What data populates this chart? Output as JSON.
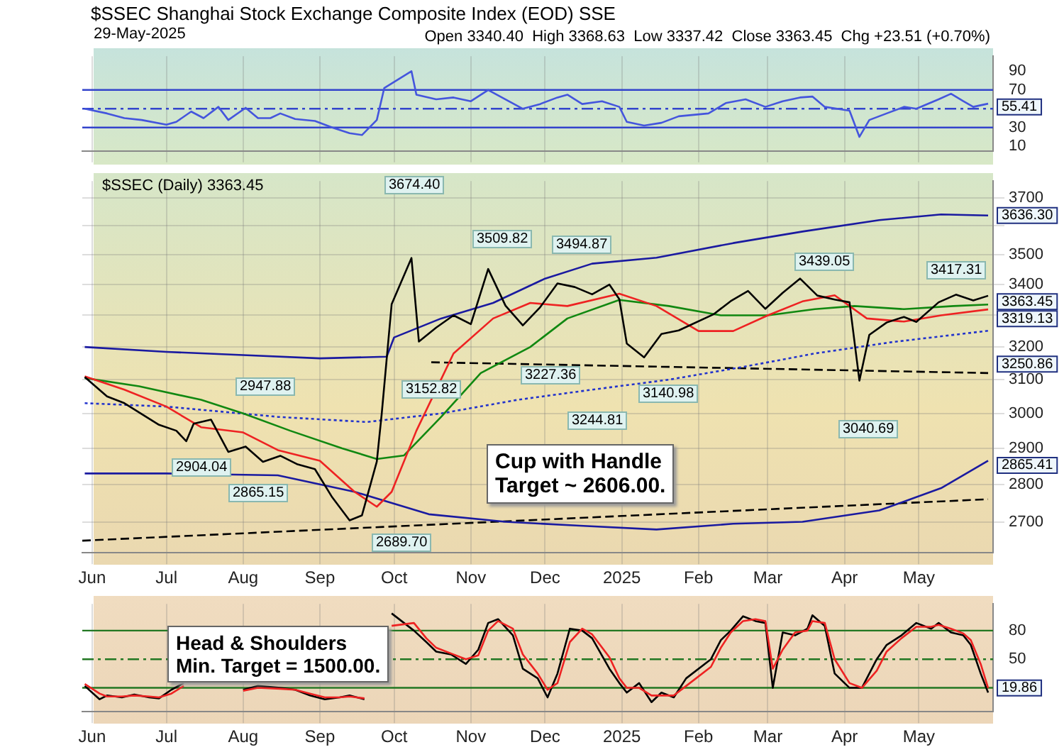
{
  "chart_data": [
    {
      "type": "line",
      "title": "$SSEC Shanghai Stock Exchange Composite Index (EOD) SSE",
      "subtitle": "29-May-2025",
      "annotations": [
        "Open 3340.40  High 3368.63  Low 3337.42  Close 3363.45  Chg +23.51 (+0.70%)",
        {
          "text": "55.41",
          "x": "2025-05-29",
          "y": 55.41
        }
      ],
      "xlim": [
        "2024-05-28",
        "2025-05-31"
      ],
      "xticks": [
        {
          "value": "2024-06-01",
          "label": null
        },
        {
          "value": "2024-07-01",
          "label": null
        },
        {
          "value": "2024-08-01",
          "label": null
        },
        {
          "value": "2024-09-01",
          "label": null
        },
        {
          "value": "2024-10-01",
          "label": null
        },
        {
          "value": "2024-11-01",
          "label": null
        },
        {
          "value": "2024-12-01",
          "label": null
        },
        {
          "value": "2025-01-01",
          "label": null
        },
        {
          "value": "2025-02-01",
          "label": null
        },
        {
          "value": "2025-03-01",
          "label": null
        },
        {
          "value": "2025-04-01",
          "label": null
        },
        {
          "value": "2025-05-01",
          "label": null
        }
      ],
      "ylim": [
        5,
        106
      ],
      "yticks": [
        10,
        30,
        {
          "value": 50,
          "label": null
        },
        70,
        90
      ],
      "tick_labels": "y",
      "grid": "x",
      "ref_lines": [
        {
          "axis": "y",
          "value": 70,
          "color": "#3344cc"
        },
        {
          "axis": "y",
          "value": 50,
          "color": "#3344cc",
          "line_style": "dashed"
        },
        {
          "axis": "y",
          "value": 30,
          "color": "#3344cc"
        }
      ],
      "series": [
        {
          "color": "#4455dd",
          "x": [
            "2024-05-29",
            "2024-06-07",
            "2024-06-14",
            "2024-06-21",
            "2024-07-01",
            "2024-07-05",
            "2024-07-11",
            "2024-07-16",
            "2024-07-22",
            "2024-07-26",
            "2024-08-02",
            "2024-08-07",
            "2024-08-12",
            "2024-08-16",
            "2024-08-22",
            "2024-08-30",
            "2024-09-06",
            "2024-09-13",
            "2024-09-18",
            "2024-09-24",
            "2024-09-27",
            "2024-10-08",
            "2024-10-10",
            "2024-10-18",
            "2024-10-25",
            "2024-11-01",
            "2024-11-08",
            "2024-11-15",
            "2024-11-22",
            "2024-11-29",
            "2024-12-06",
            "2024-12-10",
            "2024-12-16",
            "2024-12-24",
            "2024-12-31",
            "2025-01-03",
            "2025-01-10",
            "2025-01-17",
            "2025-01-24",
            "2025-02-05",
            "2025-02-12",
            "2025-02-20",
            "2025-02-28",
            "2025-03-07",
            "2025-03-14",
            "2025-03-19",
            "2025-03-24",
            "2025-04-03",
            "2025-04-07",
            "2025-04-11",
            "2025-04-18",
            "2025-04-25",
            "2025-04-30",
            "2025-05-09",
            "2025-05-14",
            "2025-05-19",
            "2025-05-23",
            "2025-05-29"
          ],
          "values": [
            50,
            45,
            40,
            38,
            33,
            36,
            47,
            40,
            52,
            38,
            51,
            40,
            40,
            45,
            39,
            37,
            30,
            24,
            22,
            38,
            72,
            90,
            65,
            60,
            62,
            58,
            70,
            60,
            50,
            55,
            62,
            65,
            55,
            58,
            52,
            36,
            32,
            35,
            42,
            45,
            56,
            60,
            52,
            58,
            62,
            63,
            52,
            48,
            20,
            38,
            45,
            52,
            50,
            60,
            66,
            58,
            52,
            55.41
          ]
        }
      ]
    },
    {
      "type": "line",
      "log": "y",
      "grid": true,
      "annotations": [
        "$SSEC (Daily) 3363.45",
        "Cup with Handle\nTarget ~ 2606.00.",
        "3674.40",
        "3509.82",
        "3494.87",
        "3439.05",
        "3417.31",
        "2947.88",
        "3244.81",
        "3152.82",
        "3227.36",
        "3140.98",
        "3040.69",
        "2904.04",
        "2865.15",
        "2689.70",
        {
          "text": "3636.30",
          "x": "2025-05-29",
          "y": 3636.3
        },
        {
          "text": "3363.45",
          "x": "2025-05-29",
          "y": 3363.45
        },
        {
          "text": "3319.13",
          "x": "2025-05-29",
          "y": 3319.13
        },
        {
          "text": "3250.86",
          "x": "2025-05-29",
          "y": 3250.86
        },
        {
          "text": "2865.41",
          "x": "2025-05-29",
          "y": 2865.41
        }
      ],
      "xlim": [
        "2024-05-28",
        "2025-05-31"
      ],
      "xticks": [
        {
          "value": "2024-06-01",
          "label": "Jun"
        },
        {
          "value": "2024-07-01",
          "label": "Jul"
        },
        {
          "value": "2024-08-01",
          "label": "Aug"
        },
        {
          "value": "2024-09-01",
          "label": "Sep"
        },
        {
          "value": "2024-10-01",
          "label": "Oct"
        },
        {
          "value": "2024-11-01",
          "label": "Nov"
        },
        {
          "value": "2024-12-01",
          "label": "Dec"
        },
        {
          "value": "2025-01-01",
          "label": "2025"
        },
        {
          "value": "2025-02-01",
          "label": "Feb"
        },
        {
          "value": "2025-03-01",
          "label": "Mar"
        },
        {
          "value": "2025-04-01",
          "label": "Apr"
        },
        {
          "value": "2025-05-01",
          "label": "May"
        }
      ],
      "ylim": [
        2620,
        3760
      ],
      "yticks": [
        2700,
        2800,
        2900,
        3000,
        3100,
        3200,
        {
          "value": 3300,
          "label": null
        },
        3400,
        3500,
        {
          "value": 3600,
          "label": null
        },
        3700
      ],
      "series": [
        {
          "color": "#000000",
          "x": [
            "2024-05-29",
            "2024-06-07",
            "2024-06-14",
            "2024-06-21",
            "2024-06-28",
            "2024-07-05",
            "2024-07-09",
            "2024-07-12",
            "2024-07-19",
            "2024-07-26",
            "2024-08-02",
            "2024-08-09",
            "2024-08-16",
            "2024-08-23",
            "2024-08-30",
            "2024-09-06",
            "2024-09-13",
            "2024-09-18",
            "2024-09-24",
            "2024-09-26",
            "2024-09-30",
            "2024-10-08",
            "2024-10-11",
            "2024-10-18",
            "2024-10-25",
            "2024-11-01",
            "2024-11-08",
            "2024-11-15",
            "2024-11-22",
            "2024-11-29",
            "2024-12-06",
            "2024-12-13",
            "2024-12-20",
            "2024-12-27",
            "2024-12-31",
            "2025-01-03",
            "2025-01-10",
            "2025-01-17",
            "2025-01-24",
            "2025-02-07",
            "2025-02-14",
            "2025-02-21",
            "2025-02-28",
            "2025-03-07",
            "2025-03-14",
            "2025-03-21",
            "2025-03-28",
            "2025-04-03",
            "2025-04-07",
            "2025-04-11",
            "2025-04-18",
            "2025-04-25",
            "2025-04-30",
            "2025-05-09",
            "2025-05-16",
            "2025-05-23",
            "2025-05-29"
          ],
          "values": [
            3108,
            3050,
            3030,
            2998,
            2967,
            2950,
            2920,
            2970,
            2982,
            2890,
            2905,
            2862,
            2879,
            2855,
            2842,
            2765,
            2704,
            2717,
            2863,
            3000,
            3336,
            3489,
            3217,
            3261,
            3300,
            3272,
            3452,
            3331,
            3268,
            3326,
            3404,
            3392,
            3368,
            3400,
            3352,
            3211,
            3168,
            3241,
            3252,
            3303,
            3346,
            3379,
            3321,
            3373,
            3420,
            3364,
            3351,
            3342,
            3097,
            3238,
            3277,
            3295,
            3279,
            3342,
            3367,
            3348,
            3363.45
          ]
        },
        {
          "color": "#ee2222",
          "x": [
            "2024-05-29",
            "2024-06-14",
            "2024-07-01",
            "2024-07-15",
            "2024-08-01",
            "2024-08-15",
            "2024-09-01",
            "2024-09-15",
            "2024-09-24",
            "2024-09-30",
            "2024-10-10",
            "2024-10-25",
            "2024-11-10",
            "2024-11-25",
            "2024-12-10",
            "2024-12-31",
            "2025-01-15",
            "2025-02-01",
            "2025-02-15",
            "2025-03-01",
            "2025-03-15",
            "2025-03-28",
            "2025-04-10",
            "2025-04-25",
            "2025-05-10",
            "2025-05-29"
          ],
          "values": [
            3110,
            3070,
            3020,
            2960,
            2945,
            2895,
            2865,
            2780,
            2740,
            2780,
            2950,
            3180,
            3290,
            3340,
            3330,
            3370,
            3330,
            3250,
            3250,
            3300,
            3345,
            3365,
            3290,
            3280,
            3300,
            3319.13
          ]
        },
        {
          "color": "#118811",
          "x": [
            "2024-05-29",
            "2024-06-20",
            "2024-07-15",
            "2024-08-01",
            "2024-08-20",
            "2024-09-10",
            "2024-09-24",
            "2024-10-05",
            "2024-10-20",
            "2024-11-05",
            "2024-11-25",
            "2024-12-10",
            "2024-12-31",
            "2025-01-20",
            "2025-02-10",
            "2025-03-01",
            "2025-03-20",
            "2025-04-05",
            "2025-04-25",
            "2025-05-15",
            "2025-05-29"
          ],
          "values": [
            3105,
            3080,
            3040,
            3000,
            2950,
            2900,
            2870,
            2880,
            2990,
            3120,
            3200,
            3290,
            3350,
            3330,
            3300,
            3300,
            3320,
            3330,
            3320,
            3330,
            3335
          ]
        },
        {
          "color": "#1a1aa0",
          "x": [
            "2024-05-29",
            "2024-07-01",
            "2024-08-01",
            "2024-09-01",
            "2024-09-28",
            "2024-10-01",
            "2024-10-20",
            "2024-11-10",
            "2024-12-01",
            "2024-12-20",
            "2025-01-15",
            "2025-02-15",
            "2025-03-15",
            "2025-04-15",
            "2025-05-10",
            "2025-05-29"
          ],
          "values": [
            3200,
            3185,
            3175,
            3165,
            3170,
            3230,
            3290,
            3340,
            3420,
            3470,
            3490,
            3540,
            3580,
            3620,
            3640,
            3636.3
          ]
        },
        {
          "color": "#1a1aa0",
          "x": [
            "2024-05-29",
            "2024-07-01",
            "2024-08-15",
            "2024-09-15",
            "2024-10-15",
            "2024-11-15",
            "2024-12-15",
            "2025-01-15",
            "2025-02-15",
            "2025-03-15",
            "2025-04-15",
            "2025-05-10",
            "2025-05-29"
          ],
          "values": [
            2830,
            2830,
            2825,
            2780,
            2720,
            2700,
            2690,
            2680,
            2695,
            2700,
            2730,
            2790,
            2865.41
          ]
        },
        {
          "color": "#2233cc",
          "line_style": "dotted",
          "x": [
            "2024-05-29",
            "2024-07-01",
            "2024-08-15",
            "2024-09-20",
            "2024-10-20",
            "2024-11-20",
            "2024-12-20",
            "2025-01-20",
            "2025-02-20",
            "2025-03-20",
            "2025-04-20",
            "2025-05-29"
          ],
          "values": [
            3030,
            3020,
            2990,
            2975,
            3000,
            3040,
            3070,
            3100,
            3140,
            3180,
            3215,
            3250.86
          ]
        },
        {
          "color": "#000000",
          "line_style": "dashed",
          "x": [
            "2024-10-16",
            "2025-05-29"
          ],
          "values": [
            3152.82,
            3120
          ]
        },
        {
          "color": "#000000",
          "line_style": "dashed",
          "x": [
            "2024-05-28",
            "2025-05-29"
          ],
          "values": [
            2651,
            2760
          ]
        }
      ]
    },
    {
      "type": "line",
      "annotations": [
        "Head & Shoulders\nMin. Target = 1500.00.",
        {
          "text": "19.86",
          "x": "2025-05-29",
          "y": 19.86
        }
      ],
      "xlim": [
        "2024-05-28",
        "2025-05-31"
      ],
      "xticks": [
        {
          "value": "2024-06-01",
          "label": "Jun"
        },
        {
          "value": "2024-07-01",
          "label": "Jul"
        },
        {
          "value": "2024-08-01",
          "label": "Aug"
        },
        {
          "value": "2024-09-01",
          "label": "Sep"
        },
        {
          "value": "2024-10-01",
          "label": "Oct"
        },
        {
          "value": "2024-11-01",
          "label": "Nov"
        },
        {
          "value": "2024-12-01",
          "label": "Dec"
        },
        {
          "value": "2025-01-01",
          "label": "2025"
        },
        {
          "value": "2025-02-01",
          "label": "Feb"
        },
        {
          "value": "2025-03-01",
          "label": "Mar"
        },
        {
          "value": "2025-04-01",
          "label": "Apr"
        },
        {
          "value": "2025-05-01",
          "label": "May"
        }
      ],
      "ylim": [
        -5,
        108
      ],
      "yticks": [
        {
          "value": 20,
          "label": null
        },
        50,
        80
      ],
      "grid": "x",
      "ref_lines": [
        {
          "axis": "y",
          "value": 80,
          "color": "#227722"
        },
        {
          "axis": "y",
          "value": 50,
          "color": "#227722",
          "line_style": "dashed"
        },
        {
          "axis": "y",
          "value": 20,
          "color": "#227722"
        }
      ],
      "series": [
        {
          "color": "#ee2222",
          "x": [
            "2024-05-29",
            "2024-06-04",
            "2024-06-07",
            "2024-06-13",
            "2024-06-18",
            "2024-06-24",
            "2024-06-28",
            "2024-07-03",
            "2024-07-08",
            "2024-07-12",
            "2024-07-26",
            "2024-08-01",
            "2024-08-07",
            "2024-08-16",
            "2024-08-22",
            "2024-08-28",
            "2024-09-03",
            "2024-09-09",
            "2024-09-13",
            "2024-09-19",
            "2024-09-24",
            "2024-09-30",
            "2024-10-09",
            "2024-10-14",
            "2024-10-18",
            "2024-10-24",
            "2024-10-30",
            "2024-11-04",
            "2024-11-08",
            "2024-11-12",
            "2024-11-18",
            "2024-11-22",
            "2024-11-28",
            "2024-12-02",
            "2024-12-06",
            "2024-12-11",
            "2024-12-16",
            "2024-12-20",
            "2024-12-27",
            "2024-12-31",
            "2025-01-03",
            "2025-01-08",
            "2025-01-13",
            "2025-01-17",
            "2025-01-22",
            "2025-01-27",
            "2025-02-06",
            "2025-02-10",
            "2025-02-14",
            "2025-02-19",
            "2025-02-24",
            "2025-02-28",
            "2025-03-03",
            "2025-03-07",
            "2025-03-12",
            "2025-03-17",
            "2025-03-19",
            "2025-03-24",
            "2025-03-28",
            "2025-04-03",
            "2025-04-08",
            "2025-04-14",
            "2025-04-18",
            "2025-04-24",
            "2025-04-30",
            "2025-05-06",
            "2025-05-09",
            "2025-05-14",
            "2025-05-19",
            "2025-05-22",
            "2025-05-26",
            "2025-05-29"
          ],
          "values": [
            24,
            14,
            11,
            11,
            12,
            11,
            10,
            14,
            22,
            null,
            null,
            17,
            20,
            19,
            18,
            14,
            10,
            10,
            11,
            9,
            null,
            85,
            88,
            72,
            62,
            56,
            50,
            54,
            80,
            90,
            82,
            55,
            35,
            18,
            25,
            68,
            82,
            76,
            52,
            30,
            20,
            20,
            12,
            12,
            12,
            22,
            42,
            62,
            78,
            90,
            92,
            90,
            40,
            60,
            78,
            80,
            90,
            88,
            50,
            25,
            20,
            38,
            58,
            72,
            84,
            84,
            86,
            82,
            77,
            70,
            45,
            19.86
          ]
        },
        {
          "color": "#000000",
          "x": [
            "2024-05-29",
            "2024-06-04",
            "2024-06-07",
            "2024-06-13",
            "2024-06-18",
            "2024-06-24",
            "2024-06-28",
            "2024-07-03",
            "2024-07-08",
            "2024-07-12",
            "2024-07-26",
            "2024-08-01",
            "2024-08-07",
            "2024-08-16",
            "2024-08-22",
            "2024-08-28",
            "2024-09-03",
            "2024-09-09",
            "2024-09-13",
            "2024-09-19",
            "2024-09-24",
            "2024-09-30",
            "2024-10-09",
            "2024-10-14",
            "2024-10-18",
            "2024-10-24",
            "2024-10-30",
            "2024-11-04",
            "2024-11-08",
            "2024-11-12",
            "2024-11-18",
            "2024-11-22",
            "2024-11-28",
            "2024-12-02",
            "2024-12-06",
            "2024-12-11",
            "2024-12-16",
            "2024-12-20",
            "2024-12-27",
            "2024-12-31",
            "2025-01-03",
            "2025-01-08",
            "2025-01-13",
            "2025-01-17",
            "2025-01-22",
            "2025-01-27",
            "2025-02-06",
            "2025-02-10",
            "2025-02-14",
            "2025-02-19",
            "2025-02-24",
            "2025-02-28",
            "2025-03-03",
            "2025-03-07",
            "2025-03-12",
            "2025-03-17",
            "2025-03-19",
            "2025-03-24",
            "2025-03-28",
            "2025-04-03",
            "2025-04-08",
            "2025-04-14",
            "2025-04-18",
            "2025-04-24",
            "2025-04-30",
            "2025-05-06",
            "2025-05-09",
            "2025-05-14",
            "2025-05-19",
            "2025-05-22",
            "2025-05-26",
            "2025-05-29"
          ],
          "values": [
            22,
            8,
            12,
            10,
            13,
            10,
            9,
            18,
            25,
            null,
            null,
            18,
            22,
            20,
            18,
            12,
            8,
            10,
            12,
            8,
            null,
            98,
            80,
            68,
            58,
            55,
            45,
            60,
            88,
            92,
            75,
            40,
            30,
            10,
            35,
            82,
            80,
            72,
            40,
            25,
            15,
            25,
            5,
            15,
            10,
            30,
            50,
            70,
            80,
            95,
            90,
            88,
            20,
            78,
            75,
            82,
            96,
            85,
            35,
            20,
            20,
            50,
            65,
            75,
            88,
            82,
            88,
            78,
            75,
            65,
            35,
            15
          ]
        }
      ]
    }
  ]
}
